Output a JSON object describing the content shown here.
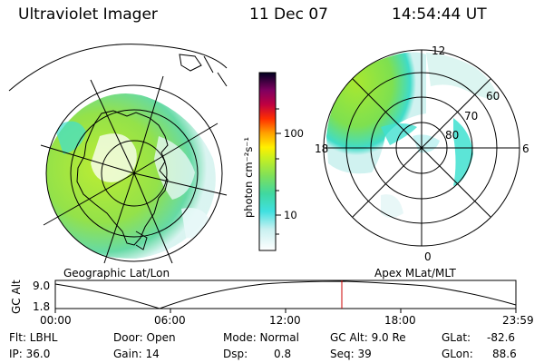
{
  "header": {
    "title": "Ultraviolet Imager",
    "date": "11 Dec 07",
    "time": "14:54:44 UT"
  },
  "colorbar": {
    "unit_label": "photon cm⁻²s⁻¹",
    "ticks": [
      "100",
      "10"
    ]
  },
  "left_map": {
    "label": "Geographic Lat/Lon"
  },
  "right_map": {
    "label": "Apex MLat/MLT",
    "mlt_labels": [
      "12",
      "18",
      "6",
      "0"
    ],
    "lat_labels": [
      "60",
      "70",
      "80"
    ]
  },
  "altitude_plot": {
    "ylabel": "GC Alt",
    "yticks": [
      "9.0",
      "1.8"
    ],
    "xticks": [
      "00:00",
      "06:00",
      "12:00",
      "18:00",
      "23:59"
    ],
    "marker_color": "#cc0000"
  },
  "info": {
    "flt": "Flt: LBHL",
    "door": "Door: Open",
    "mode": "Mode: Normal",
    "gcalt": "GC Alt: 9.0 Re",
    "glat_label": "GLat:",
    "glat_value": "-82.6",
    "ip": "IP: 36.0",
    "gain": "Gain: 14",
    "dsp_label": "Dsp:",
    "dsp_value": "0.8",
    "seq": "Seq: 39",
    "glon_label": "GLon:",
    "glon_value": "88.6"
  }
}
